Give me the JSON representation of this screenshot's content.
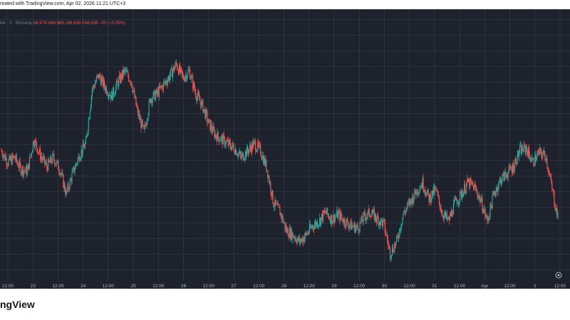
{
  "header": {
    "caption": "reated with TradingView.com, Apr 02, 2026 11:21 UTC+3"
  },
  "legend": {
    "symbol_text": "llar · 5 · Bitstamp",
    "ohlc_text": "66,679  H66,685  L66,639  C66,639  −25 (−0.05%)"
  },
  "footer": {
    "brand": "ngView"
  },
  "colors": {
    "background": "#1e222d",
    "grid": "#3a3f4b",
    "axis_text": "#b2b5be",
    "up": "#26a69a",
    "down": "#ef5350"
  },
  "chart_data": {
    "type": "line",
    "title": "",
    "xlabel": "",
    "ylabel": "",
    "x_ticks": [
      "12:00",
      "23",
      "12:00",
      "24",
      "12:00",
      "25",
      "12:00",
      "26",
      "12:00",
      "27",
      "12:00",
      "28",
      "12:00",
      "29",
      "12:00",
      "30",
      "12:00",
      "31",
      "12:00",
      "Apr",
      "12:00",
      "2",
      "12:00"
    ],
    "grid": true,
    "series": [
      {
        "values": [
          0.55,
          0.5,
          0.52,
          0.47,
          0.46,
          0.6,
          0.53,
          0.48,
          0.52,
          0.47,
          0.36,
          0.45,
          0.53,
          0.58,
          0.82,
          0.88,
          0.83,
          0.79,
          0.85,
          0.9,
          0.86,
          0.72,
          0.63,
          0.78,
          0.8,
          0.84,
          0.88,
          0.93,
          0.87,
          0.9,
          0.8,
          0.75,
          0.67,
          0.62,
          0.6,
          0.58,
          0.56,
          0.52,
          0.55,
          0.58,
          0.55,
          0.47,
          0.32,
          0.28,
          0.2,
          0.18,
          0.15,
          0.18,
          0.22,
          0.24,
          0.28,
          0.25,
          0.27,
          0.24,
          0.22,
          0.21,
          0.26,
          0.28,
          0.25,
          0.23,
          0.1,
          0.15,
          0.27,
          0.32,
          0.37,
          0.41,
          0.34,
          0.38,
          0.28,
          0.24,
          0.32,
          0.36,
          0.41,
          0.39,
          0.33,
          0.24,
          0.36,
          0.42,
          0.45,
          0.48,
          0.55,
          0.56,
          0.5,
          0.54,
          0.53,
          0.38,
          0.24
        ]
      }
    ]
  }
}
